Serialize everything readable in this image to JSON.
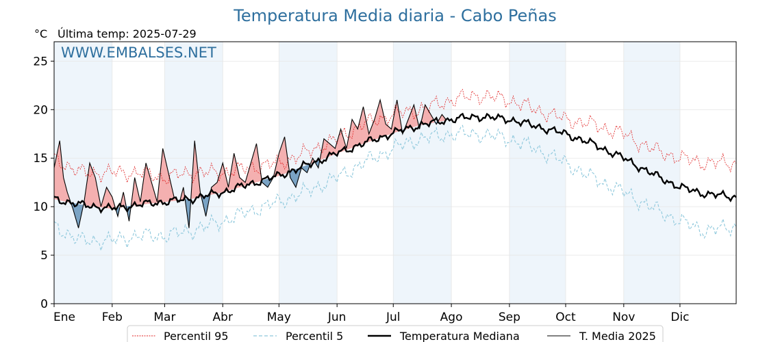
{
  "chart_data": {
    "type": "line",
    "title": "Temperatura Media diaria - Cabo Peñas",
    "unit": "°C",
    "last_temp_label": "Última temp: 2025-07-29",
    "watermark": "WWW.EMBALSES.NET",
    "xlabels": [
      "Ene",
      "Feb",
      "Mar",
      "Abr",
      "May",
      "Jun",
      "Jul",
      "Ago",
      "Sep",
      "Oct",
      "Nov",
      "Dic"
    ],
    "yticks": [
      0,
      5,
      10,
      15,
      20,
      25
    ],
    "ylim": [
      0,
      27
    ],
    "xlim_days": [
      1,
      365
    ],
    "grid": true,
    "legend_position": "bottom",
    "colors": {
      "p95": "#e02020",
      "p5": "#8ec8dc",
      "median": "#000000",
      "current": "#000000",
      "above_fill": "#f4b0b0",
      "below_fill": "#7aa3c4",
      "month_shade": "#eef5fb"
    },
    "series": [
      {
        "key": "p95",
        "name": "Percentil 95",
        "x": [
          1,
          15,
          32,
          46,
          60,
          74,
          91,
          105,
          121,
          135,
          152,
          166,
          182,
          196,
          213,
          227,
          244,
          258,
          274,
          288,
          305,
          319,
          335,
          349,
          365
        ],
        "values": [
          15.0,
          13.5,
          13.5,
          13.5,
          13.0,
          13.5,
          13.5,
          14.0,
          14.5,
          15.5,
          17.0,
          18.5,
          19.5,
          20.0,
          21.0,
          21.5,
          21.0,
          20.0,
          19.0,
          18.5,
          17.5,
          16.0,
          15.0,
          14.5,
          14.5
        ]
      },
      {
        "key": "p5",
        "name": "Percentil 5",
        "x": [
          1,
          15,
          32,
          46,
          60,
          74,
          91,
          105,
          121,
          135,
          152,
          166,
          182,
          196,
          213,
          227,
          244,
          258,
          274,
          288,
          305,
          319,
          335,
          349,
          365
        ],
        "values": [
          8.0,
          6.5,
          6.5,
          7.0,
          7.0,
          7.5,
          8.5,
          9.5,
          10.5,
          11.5,
          13.0,
          14.5,
          16.0,
          17.0,
          17.5,
          17.5,
          17.0,
          16.0,
          14.5,
          13.0,
          11.5,
          10.0,
          8.5,
          7.5,
          8.0
        ]
      },
      {
        "key": "median",
        "name": "Temperatura Mediana",
        "x": [
          1,
          15,
          32,
          46,
          60,
          74,
          91,
          105,
          121,
          135,
          152,
          166,
          182,
          196,
          213,
          227,
          244,
          258,
          274,
          288,
          305,
          319,
          335,
          349,
          365
        ],
        "values": [
          10.8,
          10.2,
          9.8,
          10.2,
          10.5,
          10.8,
          11.5,
          12.3,
          13.2,
          14.2,
          15.5,
          16.5,
          17.6,
          18.4,
          19.0,
          19.3,
          19.0,
          18.3,
          17.5,
          16.5,
          15.0,
          13.5,
          12.0,
          11.3,
          11.0
        ]
      },
      {
        "key": "current",
        "name": "T. Media 2025",
        "x": [
          1,
          4,
          6,
          8,
          11,
          14,
          17,
          20,
          23,
          26,
          29,
          32,
          35,
          38,
          41,
          44,
          47,
          50,
          53,
          56,
          59,
          62,
          65,
          68,
          70,
          73,
          76,
          79,
          82,
          85,
          88,
          91,
          94,
          97,
          100,
          103,
          106,
          109,
          112,
          115,
          118,
          121,
          124,
          127,
          130,
          133,
          136,
          139,
          142,
          145,
          148,
          151,
          154,
          157,
          160,
          163,
          166,
          169,
          172,
          175,
          178,
          181,
          184,
          187,
          190,
          193,
          196,
          199,
          202,
          205,
          208,
          210
        ],
        "values": [
          14.0,
          16.8,
          13.0,
          11.5,
          9.8,
          7.8,
          10.5,
          14.5,
          13.0,
          10.0,
          12.0,
          11.0,
          9.0,
          11.5,
          8.5,
          13.0,
          10.5,
          14.5,
          12.5,
          10.5,
          16.0,
          13.5,
          11.0,
          10.5,
          12.0,
          7.8,
          16.8,
          11.5,
          9.0,
          12.0,
          12.5,
          14.5,
          12.0,
          15.5,
          13.0,
          12.5,
          14.5,
          16.5,
          12.5,
          12.0,
          13.0,
          15.5,
          17.2,
          13.0,
          12.0,
          14.0,
          13.5,
          15.0,
          14.0,
          17.0,
          16.5,
          16.0,
          18.0,
          16.0,
          19.0,
          18.0,
          20.3,
          17.5,
          19.0,
          21.0,
          18.5,
          18.0,
          21.0,
          17.5,
          19.0,
          20.5,
          18.0,
          20.5,
          19.5,
          18.5,
          19.5,
          19.0
        ]
      }
    ]
  }
}
